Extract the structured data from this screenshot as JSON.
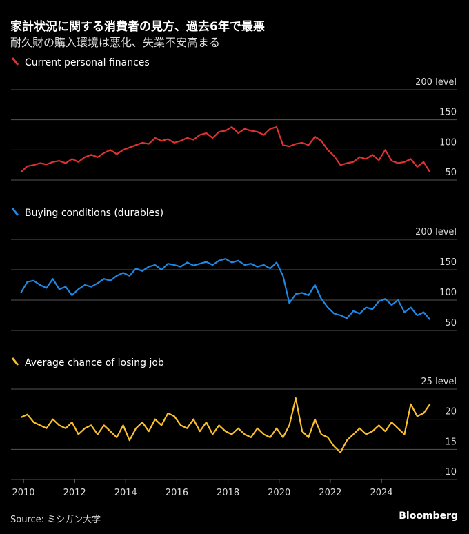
{
  "title": "家計状況に関する消費者の見方、過去6年で最悪",
  "subtitle": "耐久財の購入環境は悪化、失業不安高まる",
  "source": "Source: ミシガン大学",
  "brand": "Bloomberg",
  "x_ticks": [
    "2010",
    "2012",
    "2014",
    "2016",
    "2018",
    "2020",
    "2022",
    "2024"
  ],
  "chart_data": [
    {
      "type": "line",
      "title": "Current personal finances",
      "color": "#e03131",
      "ylim": [
        50,
        200
      ],
      "ticks": [
        "50",
        "100",
        "150",
        "200 level"
      ],
      "tick_values": [
        50,
        100,
        150,
        200
      ],
      "x_start": 2009.9,
      "x_step": 0.25,
      "values": [
        63,
        73,
        75,
        78,
        76,
        80,
        82,
        78,
        85,
        80,
        88,
        92,
        88,
        95,
        100,
        93,
        100,
        104,
        108,
        112,
        110,
        120,
        115,
        118,
        112,
        115,
        120,
        117,
        125,
        128,
        120,
        130,
        132,
        138,
        128,
        135,
        132,
        130,
        125,
        135,
        138,
        108,
        106,
        110,
        112,
        108,
        122,
        115,
        100,
        90,
        75,
        78,
        80,
        88,
        85,
        92,
        83,
        100,
        82,
        78,
        80,
        85,
        72,
        80,
        63
      ]
    },
    {
      "type": "line",
      "title": "Buying conditions (durables)",
      "color": "#1e88e5",
      "ylim": [
        50,
        200
      ],
      "ticks": [
        "50",
        "100",
        "150",
        "200 level"
      ],
      "tick_values": [
        50,
        100,
        150,
        200
      ],
      "x_start": 2009.9,
      "x_step": 0.25,
      "values": [
        112,
        130,
        132,
        125,
        120,
        135,
        118,
        122,
        108,
        118,
        125,
        122,
        128,
        135,
        132,
        140,
        145,
        140,
        152,
        148,
        155,
        158,
        150,
        160,
        158,
        155,
        162,
        157,
        160,
        163,
        158,
        165,
        168,
        162,
        165,
        158,
        160,
        155,
        158,
        152,
        162,
        140,
        95,
        110,
        112,
        108,
        125,
        102,
        88,
        78,
        75,
        70,
        82,
        78,
        88,
        85,
        98,
        102,
        92,
        100,
        80,
        88,
        75,
        80,
        68
      ]
    },
    {
      "type": "line",
      "title": "Average chance of losing job",
      "color": "#fbc02d",
      "ylim": [
        10,
        25
      ],
      "ticks": [
        "10",
        "15",
        "20",
        "25 level"
      ],
      "tick_values": [
        10,
        15,
        20,
        25
      ],
      "x_start": 2009.9,
      "x_step": 0.25,
      "values": [
        20.3,
        20.8,
        19.5,
        19,
        18.5,
        20,
        19,
        18.5,
        19.5,
        17.5,
        18.5,
        19,
        17.5,
        19,
        18,
        17,
        19,
        16.5,
        18.5,
        19.5,
        18,
        20,
        19,
        21,
        20.5,
        19,
        18.5,
        20,
        18,
        19.5,
        17.5,
        19,
        18,
        17.5,
        18.5,
        17.5,
        17,
        18.5,
        17.5,
        17,
        18.5,
        17,
        19,
        23.5,
        18,
        17,
        20,
        17.5,
        17,
        15.5,
        14.5,
        16.5,
        17.5,
        18.5,
        17.5,
        18,
        19,
        18,
        19.5,
        18.5,
        17.5,
        22.5,
        20.5,
        21,
        22.5
      ]
    }
  ]
}
